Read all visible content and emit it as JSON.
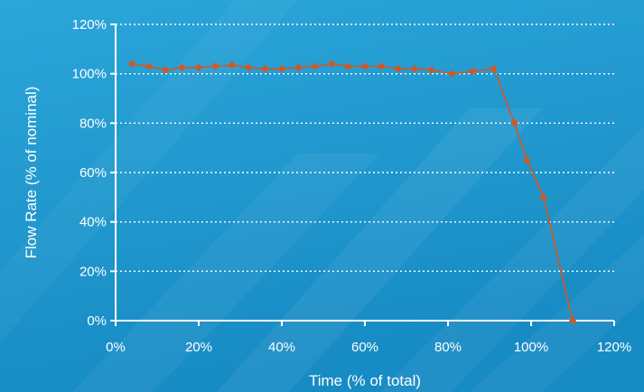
{
  "chart_data": {
    "type": "line",
    "xlabel": "Time (% of total)",
    "ylabel": "Flow Rate (% of nominal)",
    "xlim": [
      0,
      120
    ],
    "ylim": [
      0,
      120
    ],
    "x_ticks": [
      "0%",
      "20%",
      "40%",
      "60%",
      "80%",
      "100%",
      "120%"
    ],
    "y_ticks": [
      "0%",
      "20%",
      "40%",
      "60%",
      "80%",
      "100%",
      "120%"
    ],
    "grid": "horizontal-dotted",
    "legend": "none",
    "series": [
      {
        "color": "#d9541f",
        "marker": "diamond",
        "x": [
          4,
          8,
          12,
          16,
          20,
          24,
          28,
          32,
          36,
          40,
          44,
          48,
          52,
          56,
          60,
          64,
          68,
          72,
          76,
          81,
          86,
          91,
          96,
          99,
          103,
          110
        ],
        "y": [
          104,
          103,
          101.5,
          102.5,
          102.5,
          103,
          103.5,
          102.5,
          102,
          102,
          102.5,
          103,
          104,
          103,
          103,
          103,
          102,
          102,
          101.5,
          100,
          101,
          102,
          80,
          65,
          50,
          0
        ]
      }
    ]
  },
  "colors": {
    "background_top": "#2aa3d6",
    "background_bottom": "#1990c9",
    "axis": "#ffffff",
    "grid": "#ffffff",
    "series": "#d9541f"
  }
}
